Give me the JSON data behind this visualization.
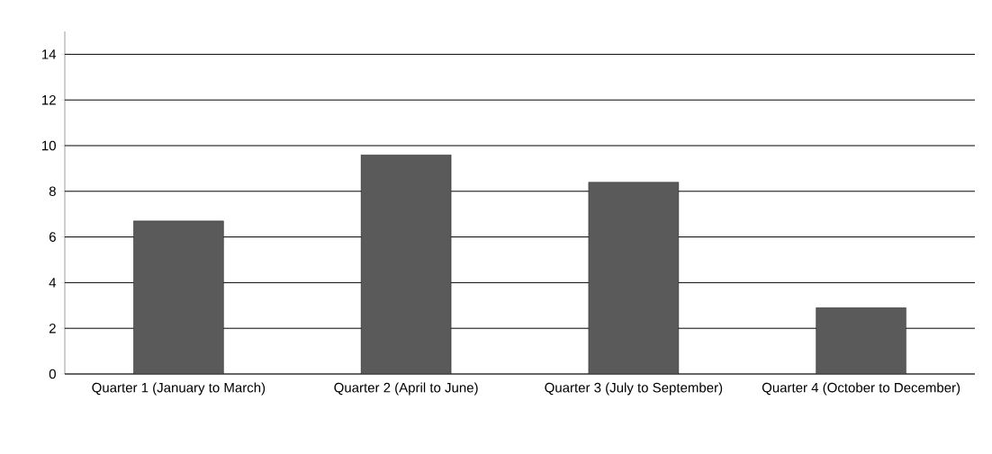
{
  "chart_data": {
    "type": "bar",
    "categories": [
      "Quarter 1 (January to March)",
      "Quarter 2 (April to June)",
      "Quarter 3 (July to September)",
      "Quarter 4 (October to December)"
    ],
    "values": [
      6.7,
      9.6,
      8.4,
      2.9
    ],
    "color": "#5a5a5a",
    "ylim": [
      0,
      15
    ],
    "yticks": [
      0,
      2,
      4,
      6,
      8,
      10,
      12,
      14
    ],
    "grid": "y"
  }
}
